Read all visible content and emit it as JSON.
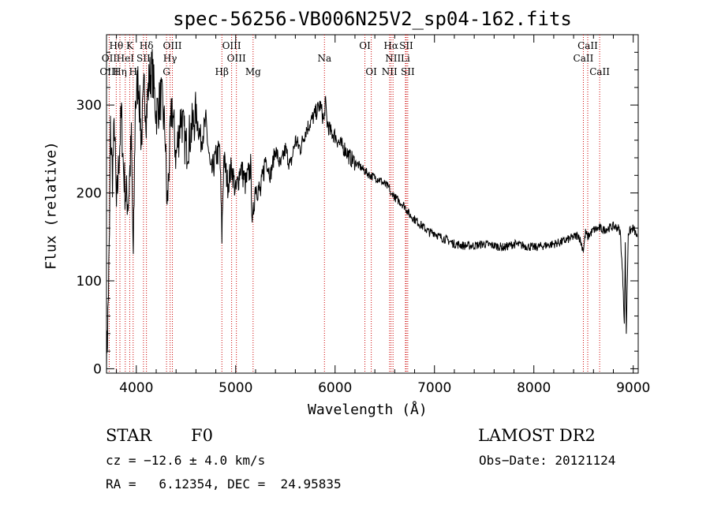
{
  "chart_data": {
    "type": "line",
    "title": "spec-56256-VB006N25V2_sp04-162.fits",
    "xlabel": "Wavelength (Å)",
    "ylabel": "Flux (relative)",
    "xlim": [
      3700,
      9050
    ],
    "ylim": [
      -5,
      380
    ],
    "x_ticks": [
      4000,
      5000,
      6000,
      7000,
      8000,
      9000
    ],
    "x_tick_labels": [
      "4000",
      "5000",
      "6000",
      "7000",
      "8000",
      "9000"
    ],
    "y_ticks": [
      0,
      100,
      200,
      300
    ],
    "y_tick_labels": [
      "0",
      "100",
      "200",
      "300"
    ],
    "series": [
      {
        "x": [
          3700,
          3710,
          3720,
          3730,
          3740,
          3760,
          3780,
          3800,
          3830,
          3850,
          3870,
          3890,
          3920,
          3950,
          3970,
          3990,
          4020,
          4050,
          4080,
          4100,
          4130,
          4160,
          4200,
          4250,
          4290,
          4310,
          4340,
          4360,
          4400,
          4450,
          4500,
          4550,
          4600,
          4650,
          4700,
          4750,
          4800,
          4840,
          4861,
          4880,
          4920,
          4960,
          5000,
          5050,
          5100,
          5150,
          5170,
          5184,
          5200,
          5250,
          5300,
          5350,
          5400,
          5450,
          5500,
          5550,
          5600,
          5650,
          5700,
          5750,
          5800,
          5850,
          5870,
          5890,
          5900,
          5920,
          5950,
          6000,
          6050,
          6100,
          6150,
          6200,
          6250,
          6300,
          6350,
          6400,
          6450,
          6500,
          6550,
          6563,
          6580,
          6600,
          6650,
          6700,
          6750,
          6800,
          6850,
          6900,
          6950,
          7000,
          7050,
          7100,
          7150,
          7200,
          7300,
          7400,
          7500,
          7600,
          7700,
          7800,
          7900,
          8000,
          8100,
          8200,
          8300,
          8400,
          8450,
          8498,
          8520,
          8542,
          8600,
          8662,
          8700,
          8750,
          8800,
          8850,
          8870,
          8900,
          8910,
          8920,
          8930,
          8950,
          9000,
          9040
        ],
        "y": [
          10,
          40,
          90,
          150,
          270,
          220,
          280,
          180,
          250,
          290,
          230,
          200,
          190,
          260,
          120,
          300,
          330,
          260,
          320,
          290,
          330,
          340,
          290,
          310,
          270,
          180,
          260,
          300,
          240,
          290,
          250,
          270,
          290,
          260,
          280,
          220,
          240,
          250,
          150,
          240,
          210,
          230,
          200,
          230,
          210,
          230,
          160,
          190,
          210,
          200,
          240,
          220,
          250,
          230,
          250,
          230,
          260,
          250,
          270,
          280,
          290,
          300,
          290,
          280,
          305,
          280,
          270,
          265,
          255,
          250,
          240,
          235,
          230,
          225,
          220,
          218,
          215,
          210,
          205,
          195,
          200,
          195,
          190,
          185,
          175,
          170,
          165,
          160,
          155,
          155,
          150,
          148,
          145,
          142,
          140,
          140,
          142,
          140,
          138,
          142,
          140,
          138,
          140,
          142,
          145,
          150,
          152,
          135,
          155,
          150,
          158,
          160,
          158,
          160,
          162,
          160,
          155,
          90,
          50,
          140,
          40,
          155,
          160,
          150
        ]
      }
    ],
    "line_markers": [
      {
        "label": "Hθ",
        "wavelength": 3798,
        "row": 0
      },
      {
        "label": "K",
        "wavelength": 3934,
        "row": 0
      },
      {
        "label": "Hδ",
        "wavelength": 4102,
        "row": 0
      },
      {
        "label": "OIII",
        "wavelength": 4363,
        "row": 0
      },
      {
        "label": "OIII",
        "wavelength": 4959,
        "row": 0
      },
      {
        "label": "OI",
        "wavelength": 6300,
        "row": 0
      },
      {
        "label": "Hα",
        "wavelength": 6563,
        "row": 0
      },
      {
        "label": "SII",
        "wavelength": 6716,
        "row": 0
      },
      {
        "label": "CaII",
        "wavelength": 8542,
        "row": 0
      },
      {
        "label": "OII",
        "wavelength": 3727,
        "row": 1
      },
      {
        "label": "HeI",
        "wavelength": 3889,
        "row": 1
      },
      {
        "label": "SII",
        "wavelength": 4072,
        "row": 1
      },
      {
        "label": "Hγ",
        "wavelength": 4340,
        "row": 1
      },
      {
        "label": "OIII",
        "wavelength": 5007,
        "row": 1
      },
      {
        "label": "Na",
        "wavelength": 5893,
        "row": 1
      },
      {
        "label": "NII",
        "wavelength": 6583,
        "row": 1
      },
      {
        "label": "Li",
        "wavelength": 6708,
        "row": 1
      },
      {
        "label": "CaII",
        "wavelength": 8498,
        "row": 1
      },
      {
        "label": "OIII",
        "wavelength": 3727,
        "row": 2
      },
      {
        "label": "Hη",
        "wavelength": 3835,
        "row": 2
      },
      {
        "label": "H",
        "wavelength": 3968,
        "row": 2
      },
      {
        "label": "G",
        "wavelength": 4304,
        "row": 2
      },
      {
        "label": "Hβ",
        "wavelength": 4861,
        "row": 2
      },
      {
        "label": "Mg",
        "wavelength": 5175,
        "row": 2
      },
      {
        "label": "OI",
        "wavelength": 6364,
        "row": 2
      },
      {
        "label": "NII",
        "wavelength": 6548,
        "row": 2
      },
      {
        "label": "SII",
        "wavelength": 6731,
        "row": 2
      },
      {
        "label": "CaII",
        "wavelength": 8662,
        "row": 2
      }
    ],
    "marker_lines": [
      3727,
      3798,
      3835,
      3889,
      3934,
      3968,
      4072,
      4102,
      4304,
      4340,
      4363,
      4861,
      4959,
      5007,
      5175,
      5893,
      6300,
      6364,
      6548,
      6563,
      6583,
      6708,
      6716,
      6731,
      8498,
      8542,
      8662
    ]
  },
  "info": {
    "object_class": "STAR",
    "subclass": "F0",
    "survey": "LAMOST DR2",
    "redshift": "cz = −12.6 ± 4.0 km/s",
    "obs_date": "Obs−Date: 20121124",
    "coords": "RA =   6.12354, DEC =  24.95835"
  },
  "colors": {
    "spectrum": "#000000",
    "marker_line": "#cc0000",
    "axis": "#000000",
    "background": "#ffffff"
  }
}
